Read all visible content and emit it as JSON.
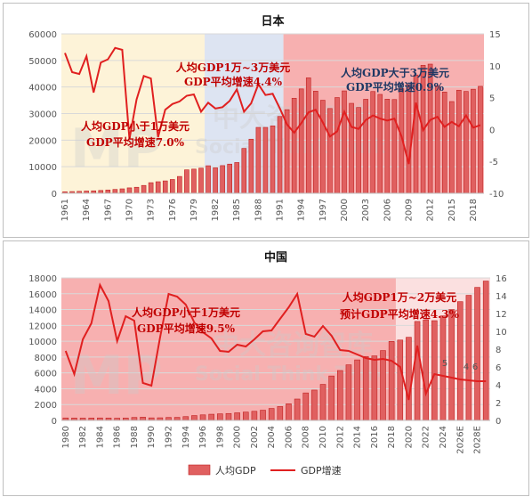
{
  "chart_data": [
    {
      "type": "bar",
      "title": "日本",
      "x": [
        "1961",
        "1962",
        "1963",
        "1964",
        "1965",
        "1966",
        "1967",
        "1968",
        "1969",
        "1970",
        "1971",
        "1972",
        "1973",
        "1974",
        "1975",
        "1976",
        "1977",
        "1978",
        "1979",
        "1980",
        "1981",
        "1982",
        "1983",
        "1984",
        "1985",
        "1986",
        "1987",
        "1988",
        "1989",
        "1990",
        "1991",
        "1992",
        "1993",
        "1994",
        "1995",
        "1996",
        "1997",
        "1998",
        "1999",
        "2000",
        "2001",
        "2002",
        "2003",
        "2004",
        "2005",
        "2006",
        "2007",
        "2008",
        "2009",
        "2010",
        "2011",
        "2012",
        "2013",
        "2014",
        "2015",
        "2016",
        "2017",
        "2018",
        "2019"
      ],
      "x_tick_labels": [
        "1961",
        "1964",
        "1967",
        "1970",
        "1973",
        "1976",
        "1979",
        "1982",
        "1985",
        "1988",
        "1991",
        "1994",
        "1997",
        "2000",
        "2003",
        "2006",
        "2009",
        "2012",
        "2015",
        "2018"
      ],
      "y_left": {
        "min": 0,
        "max": 60000,
        "ticks": [
          "0",
          "10000",
          "20000",
          "30000",
          "40000",
          "50000",
          "60000"
        ]
      },
      "y_right": {
        "min": -10,
        "max": 15,
        "ticks": [
          "-10",
          "-5",
          "0",
          "5",
          "10",
          "15"
        ]
      },
      "series": [
        {
          "name": "人均GDP",
          "axis": "left",
          "color": "#e06060",
          "values": [
            560,
            640,
            720,
            840,
            920,
            1060,
            1230,
            1450,
            1670,
            2040,
            2270,
            2950,
            3990,
            4350,
            4660,
            5200,
            6330,
            8820,
            9100,
            9460,
            10360,
            9580,
            10420,
            10980,
            11580,
            16880,
            20360,
            24800,
            24800,
            25370,
            28920,
            31460,
            35770,
            39270,
            43440,
            38440,
            35020,
            31900,
            36030,
            38530,
            33850,
            32290,
            35390,
            38300,
            37220,
            35430,
            35280,
            39340,
            40860,
            44510,
            48170,
            48600,
            40450,
            38110,
            34520,
            38790,
            38330,
            39160,
            40250
          ]
        },
        {
          "name": "GDP增速",
          "axis": "right",
          "color": "#e02020",
          "values": [
            12,
            9,
            8.7,
            11.5,
            5.8,
            10.5,
            11,
            12.8,
            12.5,
            -1.5,
            4.7,
            8.4,
            8,
            -1.2,
            3.1,
            4,
            4.4,
            5.3,
            5.5,
            2.8,
            4.2,
            3.3,
            3.5,
            4.5,
            6.3,
            2.8,
            4.1,
            7.1,
            5.4,
            5.6,
            3.3,
            0.8,
            -0.5,
            1,
            2.7,
            3.1,
            1.1,
            -1.1,
            -0.3,
            2.8,
            0.4,
            0.1,
            1.5,
            2.2,
            1.7,
            1.4,
            1.7,
            -1.1,
            -5.4,
            4.2,
            -0.1,
            1.5,
            2,
            0.4,
            1.2,
            0.5,
            2.2,
            0.3,
            0.7
          ]
        }
      ],
      "annotations": [
        {
          "text": "人均GDP小于1万美元",
          "color": "#c00000"
        },
        {
          "text": "GDP平均增速7.0%",
          "color": "#c00000"
        },
        {
          "text": "人均GDP1万~3万美元",
          "color": "#c00000"
        },
        {
          "text": "GDP平均增速4.4%",
          "color": "#c00000"
        },
        {
          "text": "人均GDP大于3万美元",
          "color": "#1f3864"
        },
        {
          "text": "GDP平均增速0.9%",
          "color": "#1f3864"
        }
      ],
      "bands": [
        {
          "from": "1961",
          "to": "1981",
          "color": "#fdf3d8"
        },
        {
          "from": "1981",
          "to": "1992",
          "color": "#dde4f2"
        },
        {
          "from": "1992",
          "to": "2019",
          "color": "#f7b0b0"
        }
      ]
    },
    {
      "type": "bar",
      "title": "中国",
      "x": [
        "1980",
        "1981",
        "1982",
        "1983",
        "1984",
        "1985",
        "1986",
        "1987",
        "1988",
        "1989",
        "1990",
        "1991",
        "1992",
        "1993",
        "1994",
        "1995",
        "1996",
        "1997",
        "1998",
        "1999",
        "2000",
        "2001",
        "2002",
        "2003",
        "2004",
        "2005",
        "2006",
        "2007",
        "2008",
        "2009",
        "2010",
        "2011",
        "2012",
        "2013",
        "2014",
        "2015",
        "2016",
        "2017",
        "2018",
        "2019",
        "2020",
        "2021",
        "2022",
        "2023",
        "2024",
        "2025",
        "2026E",
        "2027",
        "2028E",
        "2029"
      ],
      "x_tick_labels": [
        "1980",
        "1982",
        "1984",
        "1986",
        "1988",
        "1990",
        "1992",
        "1994",
        "1996",
        "1998",
        "2000",
        "2002",
        "2004",
        "2006",
        "2008",
        "2010",
        "2012",
        "2014",
        "2016",
        "2018",
        "2020",
        "2022",
        "2024",
        "2026E",
        "2028E"
      ],
      "y_left": {
        "min": 0,
        "max": 18000,
        "ticks": [
          "0",
          "2000",
          "4000",
          "6000",
          "8000",
          "10000",
          "12000",
          "14000",
          "16000",
          "18000"
        ]
      },
      "y_right": {
        "min": 0,
        "max": 16,
        "ticks": [
          "0",
          "2",
          "4",
          "6",
          "8",
          "10",
          "12",
          "14",
          "16"
        ]
      },
      "series": [
        {
          "name": "人均GDP",
          "axis": "left",
          "color": "#e06060",
          "values": [
            310,
            300,
            290,
            300,
            310,
            300,
            280,
            300,
            370,
            410,
            320,
            330,
            370,
            380,
            480,
            610,
            700,
            780,
            830,
            870,
            960,
            1050,
            1150,
            1290,
            1510,
            1750,
            2100,
            2700,
            3470,
            3830,
            4550,
            5610,
            6300,
            7020,
            7640,
            8070,
            8150,
            8820,
            9980,
            10150,
            10500,
            12500,
            12700,
            12600,
            13200,
            14000,
            15000,
            15800,
            16800,
            17600
          ]
        },
        {
          "name": "GDP增速",
          "axis": "right",
          "color": "#e02020",
          "values": [
            7.8,
            5.2,
            9.1,
            10.9,
            15.2,
            13.4,
            8.9,
            11.7,
            11.2,
            4.2,
            3.9,
            9.3,
            14.2,
            13.9,
            13,
            11,
            9.9,
            9.2,
            7.8,
            7.7,
            8.5,
            8.3,
            9.1,
            10,
            10.1,
            11.4,
            12.7,
            14.2,
            9.7,
            9.4,
            10.6,
            9.5,
            7.9,
            7.8,
            7.4,
            7,
            6.8,
            6.9,
            6.7,
            6,
            2.3,
            8.4,
            3,
            5.2,
            5,
            4.8,
            4.6,
            4.5,
            4.4,
            4.4
          ]
        }
      ],
      "annotations": [
        {
          "text": "人均GDP小于1万美元",
          "color": "#c00000"
        },
        {
          "text": "GDP平均增速9.5%",
          "color": "#c00000"
        },
        {
          "text": "人均GDP1万~2万美元",
          "color": "#c00000"
        },
        {
          "text": "预计GDP平均增速4.3%",
          "color": "#c00000"
        }
      ],
      "data_labels": [
        "5",
        "4",
        "6"
      ],
      "bands": [
        {
          "from": "1980",
          "to": "2019",
          "color": "#f7b0b0"
        },
        {
          "from": "2019",
          "to": "2029",
          "color": "#fbe0e0"
        }
      ]
    }
  ],
  "legend": {
    "items": [
      "人均GDP",
      "GDP增速"
    ],
    "position": "bottom"
  },
  "watermark": {
    "logo": "MP",
    "cn": "中大咨询智库",
    "en": "Social Think Tank"
  }
}
